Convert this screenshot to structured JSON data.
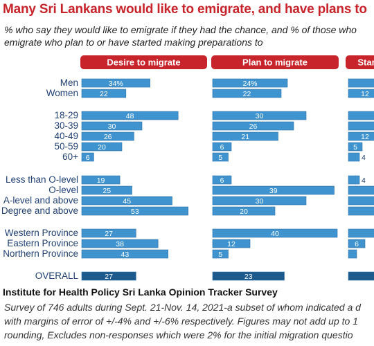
{
  "header": {
    "title": "Many Sri Lankans would like to emigrate, and have plans to",
    "subtitle": "% who say they would like to emigrate if they had the chance, and % of those who\nemigrate who plan to or have started making preparations to"
  },
  "source": {
    "title": "Institute for Health Policy Sri Lanka Opinion Tracker Survey",
    "note": "Survey of 746 adults during Sept. 21-Nov. 14, 2021-a subset of whom indicated a d\nwith margins of error of +/-4% and +/-6% respectively. Figures may not add up to 1\nrounding, Excludes non-responses which were 2% for the initial migration questio"
  },
  "colors": {
    "bar": "#3f94d0",
    "bar_overall": "#1d5a8e",
    "header_pill": "#c8242b",
    "label_text": "#1f3f73"
  },
  "chart_data": {
    "type": "bar",
    "orientation": "horizontal",
    "categories": [
      "Men",
      "Women",
      "18-29",
      "30-39",
      "40-49",
      "50-59",
      "60+",
      "Less than O-level",
      "O-level",
      "A-level and above",
      "Degree and above",
      "Western Province",
      "Eastern Province",
      "Northern Province",
      "OVERALL"
    ],
    "series": [
      {
        "name": "Desire to migrate",
        "values": [
          34,
          22,
          48,
          30,
          26,
          20,
          6,
          19,
          25,
          45,
          53,
          27,
          38,
          43,
          27
        ],
        "labels": [
          "34%",
          "22",
          "48",
          "30",
          "26",
          "20",
          "6",
          "19",
          "25",
          "45",
          "53",
          "27",
          "38",
          "43",
          "27"
        ]
      },
      {
        "name": "Plan to migrate",
        "values": [
          24,
          22,
          30,
          26,
          21,
          6,
          5,
          6,
          39,
          30,
          20,
          40,
          12,
          5,
          23
        ],
        "labels": [
          "24%",
          "22",
          "30",
          "26",
          "21",
          "6",
          "5",
          "6",
          "39",
          "30",
          "20",
          "40",
          "12",
          "5",
          "23"
        ]
      },
      {
        "name": "Star",
        "values": [
          12,
          12,
          18,
          14,
          12,
          5,
          4,
          4,
          16,
          14,
          10,
          20,
          6,
          3,
          12
        ],
        "labels": [
          "",
          "12",
          "",
          "",
          "12",
          "5",
          "4",
          "4",
          "",
          "",
          "",
          "",
          "6",
          "",
          ""
        ]
      }
    ],
    "xlim": [
      0,
      55
    ],
    "grid": false,
    "legend": "column headers"
  }
}
